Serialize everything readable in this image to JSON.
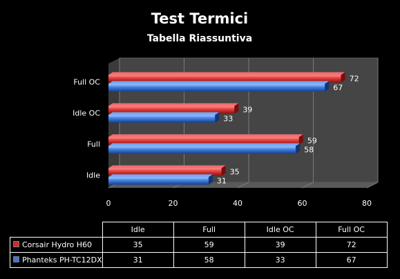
{
  "chart_data": {
    "type": "bar",
    "orientation": "horizontal",
    "title": "Test Termici",
    "subtitle": "Tabella Riassuntiva",
    "categories": [
      "Idle",
      "Full",
      "Idle OC",
      "Full OC"
    ],
    "series": [
      {
        "name": "Corsair Hydro H60",
        "color": "#d42a2a",
        "values": [
          35,
          59,
          39,
          72
        ]
      },
      {
        "name": "Phanteks PH-TC12DX",
        "color": "#3c78d8",
        "values": [
          31,
          58,
          33,
          67
        ]
      }
    ],
    "xlim": [
      0,
      80
    ],
    "x_ticks": [
      "0",
      "20",
      "40",
      "60",
      "80"
    ],
    "grid": true,
    "style_3d": true,
    "legend": "data-table-below"
  },
  "table": {
    "columns": [
      "Idle",
      "Full",
      "Idle OC",
      "Full OC"
    ],
    "rows": [
      {
        "name": "Corsair Hydro H60",
        "values": [
          "35",
          "59",
          "39",
          "72"
        ]
      },
      {
        "name": "Phanteks PH-TC12DX",
        "values": [
          "31",
          "58",
          "33",
          "67"
        ]
      }
    ]
  }
}
